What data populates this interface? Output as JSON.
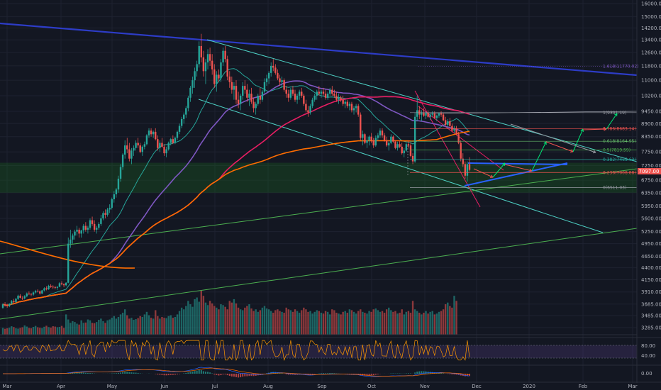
{
  "chart_data": {
    "type": "candlestick",
    "instrument": "BTCUSD",
    "y_axis_ticks": [
      16000,
      15000,
      14200,
      13400,
      12600,
      11800,
      11000,
      10200,
      9450,
      8900,
      8350,
      7750,
      7250,
      6750,
      6350,
      5950,
      5600,
      5250,
      4950,
      4650,
      4400,
      4150,
      3910,
      3685,
      3485,
      3285
    ],
    "x_axis_labels": [
      "Mar",
      "Apr",
      "May",
      "Jun",
      "Jul",
      "Aug",
      "Sep",
      "Oct",
      "Nov",
      "Dec",
      "2020",
      "Feb",
      "Mar"
    ],
    "current_price_label": "7097.00",
    "fib_levels": [
      {
        "label": "1(9391.19)",
        "value": 9391.19,
        "color": "#9598a1"
      },
      {
        "label": "0.786(8683.14)",
        "value": 8683.14,
        "color": "#ef5350"
      },
      {
        "label": "0.618(8164.95)",
        "value": 8164.95,
        "color": "#66bb6a"
      },
      {
        "label": "0.5(7819.59)",
        "value": 7819.59,
        "color": "#4caf50"
      },
      {
        "label": "0.382(7465.63)",
        "value": 7465.63,
        "color": "#26a69a"
      },
      {
        "label": "0.236(7008.88)",
        "value": 7008.88,
        "color": "#ef5350"
      },
      {
        "label": "0(6511.03)",
        "value": 6511.03,
        "color": "#9598a1"
      }
    ],
    "upper_fib_label": "1.618(11770.02)",
    "rsi_ticks": [
      "80.00",
      "40.00"
    ],
    "macd_ticks": [
      "0.00"
    ],
    "candles": [
      [
        3620,
        3700,
        3600,
        3680
      ],
      [
        3680,
        3720,
        3640,
        3660
      ],
      [
        3660,
        3690,
        3620,
        3650
      ],
      [
        3650,
        3700,
        3630,
        3690
      ],
      [
        3690,
        3760,
        3670,
        3740
      ],
      [
        3740,
        3780,
        3700,
        3720
      ],
      [
        3720,
        3800,
        3710,
        3780
      ],
      [
        3780,
        3860,
        3760,
        3840
      ],
      [
        3840,
        3870,
        3790,
        3800
      ],
      [
        3800,
        3830,
        3760,
        3790
      ],
      [
        3790,
        3850,
        3770,
        3830
      ],
      [
        3830,
        3900,
        3810,
        3880
      ],
      [
        3880,
        3920,
        3850,
        3870
      ],
      [
        3870,
        3890,
        3830,
        3860
      ],
      [
        3860,
        3920,
        3840,
        3900
      ],
      [
        3900,
        3950,
        3880,
        3930
      ],
      [
        3930,
        3960,
        3900,
        3920
      ],
      [
        3920,
        3940,
        3860,
        3880
      ],
      [
        3880,
        3950,
        3870,
        3940
      ],
      [
        3940,
        4000,
        3920,
        3980
      ],
      [
        3980,
        4020,
        3940,
        3960
      ],
      [
        3960,
        4050,
        3950,
        4030
      ],
      [
        4030,
        4060,
        3990,
        4010
      ],
      [
        4010,
        4040,
        3970,
        4000
      ],
      [
        4000,
        4030,
        3960,
        3990
      ],
      [
        3990,
        4020,
        3950,
        4010
      ],
      [
        4010,
        4100,
        4000,
        4080
      ],
      [
        4080,
        4120,
        4040,
        4060
      ],
      [
        4060,
        4080,
        4000,
        4040
      ],
      [
        4040,
        4100,
        4020,
        4090
      ],
      [
        4090,
        5100,
        4080,
        4950
      ],
      [
        4950,
        5300,
        4850,
        5050
      ],
      [
        5050,
        5200,
        4950,
        5150
      ],
      [
        5150,
        5300,
        5050,
        5250
      ],
      [
        5250,
        5400,
        5150,
        5300
      ],
      [
        5300,
        5350,
        5100,
        5200
      ],
      [
        5200,
        5300,
        5100,
        5280
      ],
      [
        5280,
        5450,
        5200,
        5400
      ],
      [
        5400,
        5500,
        5250,
        5300
      ],
      [
        5300,
        5400,
        5200,
        5350
      ],
      [
        5350,
        5600,
        5300,
        5550
      ],
      [
        5550,
        5650,
        5400,
        5450
      ],
      [
        5450,
        5550,
        5250,
        5300
      ],
      [
        5300,
        5400,
        5200,
        5350
      ],
      [
        5350,
        5500,
        5300,
        5450
      ],
      [
        5450,
        5700,
        5400,
        5600
      ],
      [
        5600,
        5800,
        5550,
        5750
      ],
      [
        5750,
        5850,
        5600,
        5700
      ],
      [
        5700,
        5900,
        5650,
        5850
      ],
      [
        5850,
        6000,
        5750,
        5900
      ],
      [
        5900,
        6200,
        5850,
        6150
      ],
      [
        6150,
        6400,
        6050,
        6300
      ],
      [
        6300,
        6500,
        6200,
        6450
      ],
      [
        6450,
        6900,
        6350,
        6800
      ],
      [
        6800,
        7300,
        6700,
        7200
      ],
      [
        7200,
        7700,
        7100,
        7650
      ],
      [
        7650,
        8200,
        7500,
        8000
      ],
      [
        8000,
        8300,
        7700,
        7850
      ],
      [
        7850,
        8100,
        7400,
        7500
      ],
      [
        7500,
        7900,
        7300,
        7800
      ],
      [
        7800,
        8000,
        7600,
        7900
      ],
      [
        7900,
        8200,
        7800,
        8100
      ],
      [
        8100,
        8300,
        7900,
        8000
      ],
      [
        8000,
        8100,
        7700,
        7750
      ],
      [
        7750,
        8000,
        7600,
        7950
      ],
      [
        7950,
        8150,
        7850,
        8050
      ],
      [
        8050,
        8450,
        8000,
        8400
      ],
      [
        8400,
        8700,
        8300,
        8600
      ],
      [
        8600,
        8700,
        8350,
        8450
      ],
      [
        8450,
        8600,
        8300,
        8550
      ],
      [
        8550,
        8700,
        8200,
        8250
      ],
      [
        8250,
        8400,
        7800,
        7900
      ],
      [
        7900,
        8200,
        7750,
        8100
      ],
      [
        8100,
        8300,
        7900,
        7950
      ],
      [
        7950,
        8050,
        7600,
        7700
      ],
      [
        7700,
        7950,
        7550,
        7850
      ],
      [
        7850,
        8150,
        7800,
        8100
      ],
      [
        8100,
        8300,
        8000,
        8250
      ],
      [
        8250,
        8400,
        8050,
        8100
      ],
      [
        8100,
        8350,
        8050,
        8300
      ],
      [
        8300,
        8600,
        8200,
        8550
      ],
      [
        8550,
        8900,
        8450,
        8800
      ],
      [
        8800,
        9200,
        8700,
        9100
      ],
      [
        9100,
        9400,
        8900,
        9300
      ],
      [
        9300,
        9700,
        9150,
        9600
      ],
      [
        9600,
        10200,
        9450,
        10100
      ],
      [
        10100,
        10700,
        9900,
        10600
      ],
      [
        10600,
        11200,
        10300,
        11000
      ],
      [
        11000,
        11700,
        10600,
        11500
      ],
      [
        11500,
        12100,
        11200,
        11900
      ],
      [
        11900,
        13300,
        11700,
        13000
      ],
      [
        13000,
        13800,
        12000,
        12300
      ],
      [
        12300,
        12700,
        11200,
        11500
      ],
      [
        11500,
        12200,
        10800,
        12000
      ],
      [
        12000,
        12800,
        11600,
        12500
      ],
      [
        12500,
        12900,
        11800,
        12100
      ],
      [
        12100,
        12500,
        11300,
        11600
      ],
      [
        11600,
        11900,
        10600,
        10800
      ],
      [
        10800,
        11500,
        10400,
        11300
      ],
      [
        11300,
        11600,
        10900,
        11100
      ],
      [
        11100,
        12200,
        10900,
        12000
      ],
      [
        12000,
        12900,
        11800,
        12700
      ],
      [
        12700,
        13000,
        12000,
        12200
      ],
      [
        12200,
        12400,
        11000,
        11200
      ],
      [
        11200,
        11500,
        10600,
        10900
      ],
      [
        10900,
        11200,
        10300,
        10500
      ],
      [
        10500,
        10900,
        10000,
        10700
      ],
      [
        10700,
        11000,
        9800,
        10000
      ],
      [
        10000,
        10400,
        9600,
        9800
      ],
      [
        9800,
        10300,
        9500,
        10200
      ],
      [
        10200,
        10900,
        10000,
        10700
      ],
      [
        10700,
        11000,
        10300,
        10500
      ],
      [
        10500,
        10800,
        9900,
        10100
      ],
      [
        10100,
        10500,
        9700,
        10300
      ],
      [
        10300,
        10600,
        9800,
        9900
      ],
      [
        9900,
        10100,
        9400,
        9600
      ],
      [
        9600,
        9900,
        9300,
        9800
      ],
      [
        9800,
        10300,
        9700,
        10200
      ],
      [
        10200,
        10600,
        9800,
        10000
      ],
      [
        10000,
        10500,
        9900,
        10400
      ],
      [
        10400,
        11100,
        10300,
        10900
      ],
      [
        10900,
        11300,
        10700,
        11100
      ],
      [
        11100,
        11500,
        10800,
        11400
      ],
      [
        11400,
        12000,
        11200,
        11800
      ],
      [
        11800,
        12200,
        11500,
        11700
      ],
      [
        11700,
        11900,
        11300,
        11400
      ],
      [
        11400,
        11600,
        11000,
        11100
      ],
      [
        11100,
        11300,
        10700,
        10900
      ],
      [
        10900,
        11200,
        10600,
        11000
      ],
      [
        11000,
        11100,
        10400,
        10500
      ],
      [
        10500,
        10700,
        10100,
        10300
      ],
      [
        10300,
        10500,
        9900,
        10100
      ],
      [
        10100,
        10600,
        10000,
        10500
      ],
      [
        10500,
        10700,
        10200,
        10300
      ],
      [
        10300,
        10500,
        9900,
        10000
      ],
      [
        10000,
        10300,
        9800,
        10200
      ],
      [
        10200,
        10500,
        10000,
        10400
      ],
      [
        10400,
        10600,
        10100,
        10200
      ],
      [
        10200,
        10300,
        9700,
        9800
      ],
      [
        9800,
        10000,
        9400,
        9500
      ],
      [
        9500,
        9700,
        9200,
        9400
      ],
      [
        9400,
        9800,
        9300,
        9700
      ],
      [
        9700,
        10100,
        9600,
        10000
      ],
      [
        10000,
        10300,
        9900,
        10200
      ],
      [
        10200,
        10500,
        10000,
        10400
      ],
      [
        10400,
        10700,
        10200,
        10300
      ],
      [
        10300,
        10500,
        10100,
        10400
      ],
      [
        10400,
        10600,
        10200,
        10300
      ],
      [
        10300,
        10500,
        10000,
        10100
      ],
      [
        10100,
        10400,
        10000,
        10300
      ],
      [
        10300,
        10600,
        10200,
        10500
      ],
      [
        10500,
        10700,
        10200,
        10300
      ],
      [
        10300,
        10500,
        10100,
        10200
      ],
      [
        10200,
        10400,
        9900,
        10000
      ],
      [
        10000,
        10300,
        9800,
        10100
      ],
      [
        10100,
        10200,
        9900,
        10000
      ],
      [
        10000,
        10200,
        9700,
        9800
      ],
      [
        9800,
        10000,
        9600,
        9900
      ],
      [
        9900,
        10000,
        9600,
        9700
      ],
      [
        9700,
        9900,
        9500,
        9800
      ],
      [
        9800,
        9900,
        9400,
        9500
      ],
      [
        9500,
        9700,
        9300,
        9600
      ],
      [
        9600,
        9800,
        9400,
        9700
      ],
      [
        9700,
        9800,
        9200,
        9300
      ],
      [
        9300,
        9400,
        8200,
        8300
      ],
      [
        8300,
        8600,
        8000,
        8450
      ],
      [
        8450,
        8500,
        8050,
        8100
      ],
      [
        8100,
        8350,
        7900,
        8200
      ],
      [
        8200,
        8400,
        8000,
        8350
      ],
      [
        8350,
        8500,
        8100,
        8200
      ],
      [
        8200,
        8300,
        7900,
        8000
      ],
      [
        8000,
        8400,
        7950,
        8300
      ],
      [
        8300,
        8500,
        8200,
        8400
      ],
      [
        8400,
        8700,
        8300,
        8600
      ],
      [
        8600,
        8700,
        8300,
        8400
      ],
      [
        8400,
        8500,
        8150,
        8200
      ],
      [
        8200,
        8350,
        7950,
        8000
      ],
      [
        8000,
        8200,
        7800,
        8100
      ],
      [
        8100,
        8450,
        8050,
        8350
      ],
      [
        8350,
        8400,
        8100,
        8150
      ],
      [
        8150,
        8200,
        7850,
        7900
      ],
      [
        7900,
        8150,
        7800,
        8050
      ],
      [
        8050,
        8200,
        7900,
        7950
      ],
      [
        7950,
        8100,
        7650,
        7700
      ],
      [
        7700,
        7900,
        7550,
        7800
      ],
      [
        7800,
        8100,
        7750,
        8050
      ],
      [
        8050,
        8200,
        7900,
        8000
      ],
      [
        8000,
        8100,
        7550,
        7600
      ],
      [
        7600,
        7700,
        7300,
        7400
      ],
      [
        7400,
        9400,
        7350,
        9200
      ],
      [
        9200,
        10200,
        9000,
        9500
      ],
      [
        9500,
        9700,
        9100,
        9300
      ],
      [
        9300,
        9500,
        9000,
        9400
      ],
      [
        9400,
        9600,
        9200,
        9250
      ],
      [
        9250,
        9450,
        9100,
        9400
      ],
      [
        9400,
        9500,
        9150,
        9200
      ],
      [
        9200,
        9350,
        9050,
        9300
      ],
      [
        9300,
        9450,
        9200,
        9350
      ],
      [
        9350,
        9450,
        9100,
        9150
      ],
      [
        9150,
        9300,
        9000,
        9250
      ],
      [
        9250,
        9400,
        9150,
        9350
      ],
      [
        9350,
        9450,
        9200,
        9300
      ],
      [
        9300,
        9400,
        9000,
        9050
      ],
      [
        9050,
        9200,
        8800,
        8850
      ],
      [
        8850,
        9100,
        8700,
        9000
      ],
      [
        9000,
        9150,
        8750,
        8800
      ],
      [
        8800,
        8900,
        8550,
        8600
      ],
      [
        8600,
        8800,
        8500,
        8700
      ],
      [
        8700,
        8800,
        8400,
        8450
      ],
      [
        8450,
        8550,
        8050,
        8100
      ],
      [
        8100,
        8200,
        7400,
        7500
      ],
      [
        7500,
        7700,
        7200,
        7300
      ],
      [
        7300,
        7400,
        6800,
        6900
      ],
      [
        6900,
        7400,
        6700,
        7300
      ],
      [
        7300,
        7550,
        7050,
        7100
      ]
    ],
    "volume": [
      40,
      35,
      38,
      42,
      50,
      45,
      38,
      36,
      40,
      44,
      55,
      48,
      40,
      38,
      46,
      52,
      44,
      41,
      39,
      47,
      53,
      45,
      42,
      50,
      48,
      44,
      46,
      52,
      40,
      120,
      90,
      70,
      80,
      75,
      65,
      60,
      85,
      70,
      72,
      90,
      85,
      70,
      68,
      75,
      88,
      95,
      80,
      70,
      85,
      90,
      100,
      110,
      95,
      105,
      120,
      130,
      150,
      115,
      95,
      100,
      88,
      92,
      98,
      110,
      105,
      120,
      135,
      115,
      100,
      95,
      145,
      110,
      95,
      105,
      100,
      98,
      110,
      115,
      100,
      105,
      120,
      140,
      160,
      150,
      170,
      200,
      180,
      165,
      210,
      220,
      195,
      260,
      230,
      190,
      175,
      200,
      185,
      170,
      160,
      150,
      180,
      175,
      165,
      150,
      200,
      190,
      210,
      185,
      160,
      150,
      145,
      160,
      170,
      180,
      155,
      140,
      150,
      135,
      145,
      160,
      170,
      155,
      150,
      140,
      130,
      145,
      150,
      140,
      135,
      130,
      160,
      150,
      145,
      135,
      150,
      140,
      130,
      145,
      160,
      150,
      135,
      140,
      125,
      135,
      145,
      140,
      130,
      125,
      140,
      135,
      120,
      150,
      145,
      130,
      125,
      120,
      135,
      140,
      130,
      150,
      145,
      135,
      125,
      140,
      150,
      135,
      130,
      125,
      140,
      135,
      150,
      155,
      145,
      135,
      140,
      130,
      150,
      160,
      145,
      135,
      140,
      125,
      130,
      150,
      120,
      135,
      140,
      130,
      200,
      150,
      140,
      130,
      120,
      130,
      140,
      125,
      135,
      140,
      120,
      125,
      135,
      140,
      150,
      180,
      190,
      170,
      160,
      230,
      200
    ]
  }
}
